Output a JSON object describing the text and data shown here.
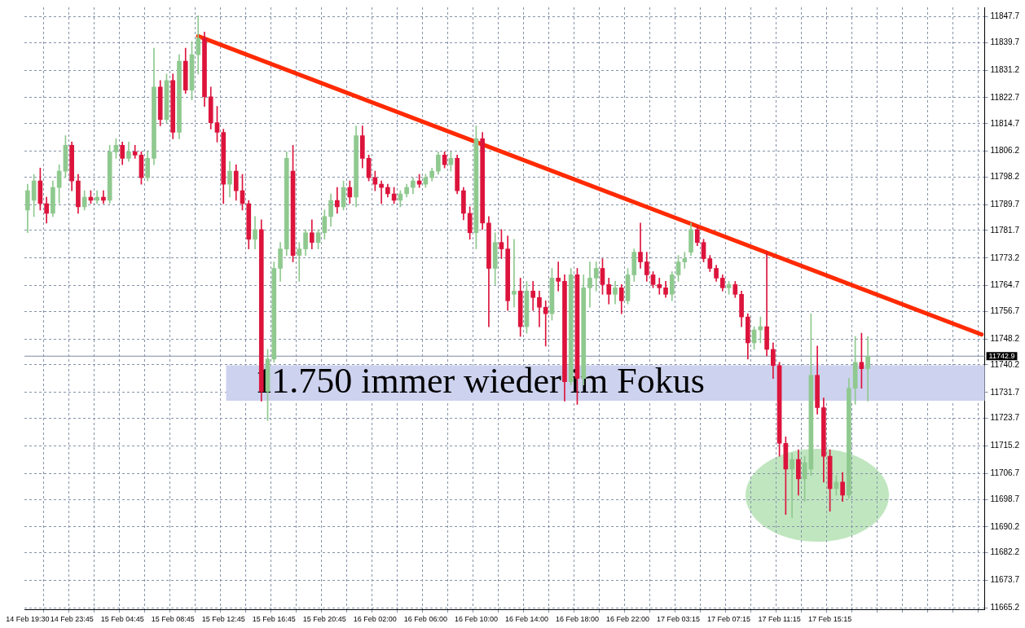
{
  "chart_data": {
    "type": "candlestick",
    "categories": [
      "14 Feb 19:30",
      null,
      null,
      null,
      null,
      null,
      null,
      "14 Feb 23:45",
      null,
      null,
      null,
      null,
      null,
      null,
      null,
      "15 Feb 04:45",
      null,
      null,
      null,
      null,
      null,
      null,
      null,
      "15 Feb 08:45",
      null,
      null,
      null,
      null,
      null,
      null,
      null,
      "15 Feb 12:45",
      null,
      null,
      null,
      null,
      null,
      null,
      null,
      "15 Feb 16:45",
      null,
      null,
      null,
      null,
      null,
      null,
      null,
      "15 Feb 20:45",
      null,
      null,
      null,
      null,
      null,
      null,
      null,
      "16 Feb 02:00",
      null,
      null,
      null,
      null,
      null,
      null,
      null,
      "16 Feb 06:00",
      null,
      null,
      null,
      null,
      null,
      null,
      null,
      "16 Feb 10:00",
      null,
      null,
      null,
      null,
      null,
      null,
      null,
      "16 Feb 14:00",
      null,
      null,
      null,
      null,
      null,
      null,
      null,
      "16 Feb 18:00",
      null,
      null,
      null,
      null,
      null,
      null,
      null,
      "16 Feb 22:00",
      null,
      null,
      null,
      null,
      null,
      null,
      null,
      "17 Feb 03:15",
      null,
      null,
      null,
      null,
      null,
      null,
      null,
      "17 Feb 07:15",
      null,
      null,
      null,
      null,
      null,
      null,
      null,
      "17 Feb 11:15",
      null,
      null,
      null,
      null,
      null,
      null,
      null,
      "17 Feb 15:15",
      null,
      null,
      null,
      null,
      null,
      null,
      null,
      null,
      null,
      null,
      null,
      null,
      null,
      null,
      null,
      null,
      null,
      null,
      null,
      null,
      null,
      null,
      null,
      null
    ],
    "ohlc": [
      [
        11788,
        11796,
        11781,
        11794
      ],
      [
        11791,
        11799,
        11786,
        11797
      ],
      [
        11797,
        11801,
        11788,
        11790
      ],
      [
        11790,
        11792,
        11784,
        11787
      ],
      [
        11787,
        11797,
        11786,
        11795
      ],
      [
        11795,
        11802,
        11790,
        11800
      ],
      [
        11800,
        11811,
        11798,
        11808
      ],
      [
        11808,
        11809,
        11794,
        11797
      ],
      [
        11797,
        11799,
        11787,
        11789
      ],
      [
        11789,
        11794,
        11788,
        11792
      ],
      [
        11792,
        11794,
        11790,
        11791
      ],
      [
        11791,
        11794,
        11790,
        11792
      ],
      [
        11792,
        11794,
        11790,
        11791
      ],
      [
        11791,
        11808,
        11790,
        11806
      ],
      [
        11806,
        11810,
        11804,
        11808
      ],
      [
        11808,
        11809,
        11802,
        11804
      ],
      [
        11804,
        11809,
        11803,
        11806
      ],
      [
        11806,
        11808,
        11804,
        11805
      ],
      [
        11805,
        11806,
        11796,
        11798
      ],
      [
        11798,
        11806,
        11797,
        11804
      ],
      [
        11804,
        11838,
        11802,
        11826
      ],
      [
        11826,
        11828,
        11814,
        11816
      ],
      [
        11816,
        11830,
        11815,
        11828
      ],
      [
        11828,
        11830,
        11810,
        11812
      ],
      [
        11812,
        11836,
        11810,
        11834
      ],
      [
        11834,
        11838,
        11824,
        11825
      ],
      [
        11825,
        11840,
        11822,
        11836
      ],
      [
        11836,
        11848,
        11830,
        11841
      ],
      [
        11841,
        11843,
        11820,
        11823
      ],
      [
        11823,
        11826,
        11813,
        11815
      ],
      [
        11815,
        11820,
        11809,
        11812
      ],
      [
        11812,
        11813,
        11790,
        11796
      ],
      [
        11796,
        11803,
        11792,
        11800
      ],
      [
        11800,
        11802,
        11791,
        11794
      ],
      [
        11794,
        11799,
        11788,
        11790
      ],
      [
        11790,
        11791,
        11776,
        11779
      ],
      [
        11779,
        11786,
        11776,
        11782
      ],
      [
        11782,
        11785,
        11729,
        11732
      ],
      [
        11732,
        11745,
        11723,
        11742
      ],
      [
        11742,
        11772,
        11741,
        11770
      ],
      [
        11770,
        11778,
        11766,
        11776
      ],
      [
        11776,
        11806,
        11774,
        11804
      ],
      [
        11800,
        11808,
        11772,
        11774
      ],
      [
        11774,
        11778,
        11766,
        11776
      ],
      [
        11776,
        11782,
        11774,
        11781
      ],
      [
        11781,
        11785,
        11776,
        11778
      ],
      [
        11778,
        11782,
        11776,
        11781
      ],
      [
        11781,
        11788,
        11779,
        11786
      ],
      [
        11786,
        11793,
        11783,
        11791
      ],
      [
        11791,
        11795,
        11787,
        11789
      ],
      [
        11789,
        11797,
        11788,
        11795
      ],
      [
        11795,
        11797,
        11790,
        11792
      ],
      [
        11792,
        11814,
        11789,
        11811
      ],
      [
        11811,
        11814,
        11801,
        11804
      ],
      [
        11804,
        11805,
        11797,
        11798
      ],
      [
        11798,
        11800,
        11794,
        11796
      ],
      [
        11796,
        11797,
        11790,
        11795
      ],
      [
        11795,
        11796,
        11792,
        11793
      ],
      [
        11793,
        11795,
        11790,
        11791
      ],
      [
        11791,
        11794,
        11789,
        11793
      ],
      [
        11793,
        11796,
        11792,
        11795
      ],
      [
        11795,
        11798,
        11793,
        11797
      ],
      [
        11797,
        11799,
        11795,
        11796
      ],
      [
        11796,
        11799,
        11795,
        11798
      ],
      [
        11798,
        11801,
        11797,
        11800
      ],
      [
        11800,
        11806,
        11799,
        11805
      ],
      [
        11805,
        11806,
        11801,
        11802
      ],
      [
        11802,
        11806,
        11800,
        11804
      ],
      [
        11804,
        11805,
        11793,
        11794
      ],
      [
        11794,
        11795,
        11785,
        11787
      ],
      [
        11787,
        11789,
        11779,
        11781
      ],
      [
        11781,
        11814,
        11776,
        11810
      ],
      [
        11810,
        11812,
        11782,
        11784
      ],
      [
        11784,
        11786,
        11752,
        11770
      ],
      [
        11770,
        11781,
        11765,
        11778
      ],
      [
        11778,
        11782,
        11773,
        11776
      ],
      [
        11776,
        11780,
        11757,
        11760
      ],
      [
        11762,
        11779,
        11758,
        11763
      ],
      [
        11763,
        11767,
        11749,
        11752
      ],
      [
        11752,
        11766,
        11750,
        11763
      ],
      [
        11763,
        11766,
        11757,
        11761
      ],
      [
        11761,
        11763,
        11752,
        11758
      ],
      [
        11758,
        11760,
        11746,
        11756
      ],
      [
        11756,
        11770,
        11754,
        11767
      ],
      [
        11767,
        11772,
        11763,
        11766
      ],
      [
        11766,
        11768,
        11729,
        11735
      ],
      [
        11735,
        11770,
        11734,
        11768
      ],
      [
        11768,
        11770,
        11728,
        11736
      ],
      [
        11736,
        11768,
        11734,
        11764
      ],
      [
        11764,
        11772,
        11758,
        11767
      ],
      [
        11767,
        11772,
        11763,
        11770
      ],
      [
        11770,
        11773,
        11762,
        11765
      ],
      [
        11765,
        11767,
        11759,
        11762
      ],
      [
        11762,
        11766,
        11759,
        11764
      ],
      [
        11764,
        11765,
        11756,
        11760
      ],
      [
        11760,
        11770,
        11759,
        11768
      ],
      [
        11768,
        11776,
        11766,
        11775
      ],
      [
        11775,
        11784,
        11770,
        11772
      ],
      [
        11772,
        11775,
        11766,
        11768
      ],
      [
        11768,
        11769,
        11764,
        11765
      ],
      [
        11765,
        11767,
        11762,
        11764
      ],
      [
        11764,
        11766,
        11761,
        11762
      ],
      [
        11762,
        11769,
        11760,
        11768
      ],
      [
        11768,
        11774,
        11766,
        11772
      ],
      [
        11772,
        11775,
        11770,
        11773
      ],
      [
        11775,
        11784,
        11774,
        11782
      ],
      [
        11782,
        11783,
        11777,
        11778
      ],
      [
        11778,
        11779,
        11772,
        11773
      ],
      [
        11773,
        11774,
        11769,
        11770
      ],
      [
        11770,
        11771,
        11766,
        11767
      ],
      [
        11767,
        11768,
        11763,
        11764
      ],
      [
        11764,
        11766,
        11762,
        11765
      ],
      [
        11765,
        11766,
        11761,
        11762
      ],
      [
        11762,
        11763,
        11752,
        11755
      ],
      [
        11755,
        11756,
        11742,
        11747
      ],
      [
        11747,
        11752,
        11745,
        11751
      ],
      [
        11751,
        11755,
        11747,
        11752
      ],
      [
        11752,
        11775,
        11743,
        11745
      ],
      [
        11745,
        11747,
        11736,
        11740
      ],
      [
        11740,
        11741,
        11712,
        11716
      ],
      [
        11716,
        11718,
        11694,
        11708
      ],
      [
        11708,
        11713,
        11693,
        11711
      ],
      [
        11711,
        11714,
        11700,
        11705
      ],
      [
        11705,
        11712,
        11698,
        11710
      ],
      [
        11708,
        11756,
        11706,
        11737
      ],
      [
        11737,
        11746,
        11725,
        11727
      ],
      [
        11727,
        11730,
        11704,
        11712
      ],
      [
        11712,
        11714,
        11695,
        11702
      ],
      [
        11702,
        11706,
        11700,
        11704
      ],
      [
        11704,
        11707,
        11698,
        11700
      ],
      [
        11700,
        11736,
        11699,
        11733
      ],
      [
        11733,
        11749,
        11728,
        11741
      ],
      [
        11741,
        11750,
        11733,
        11739
      ],
      [
        11739,
        11749,
        11729,
        11742.9
      ],
      null,
      null,
      null,
      null,
      null,
      null,
      null,
      null,
      null,
      null,
      null,
      null,
      null,
      null,
      null,
      null,
      null,
      null
    ],
    "colors": [
      "#8fc98f",
      "#8fc98f",
      "#dc143c",
      "#dc143c",
      "#8fc98f",
      "#8fc98f",
      "#8fc98f",
      "#dc143c",
      "#dc143c",
      "#8fc98f",
      "#dc143c",
      "#8fc98f",
      "#dc143c",
      "#8fc98f",
      "#8fc98f",
      "#dc143c",
      "#8fc98f",
      "#dc143c",
      "#dc143c",
      "#8fc98f",
      "#8fc98f",
      "#dc143c",
      "#8fc98f",
      "#dc143c",
      "#8fc98f",
      "#dc143c",
      "#8fc98f",
      "#8fc98f",
      "#dc143c",
      "#dc143c",
      "#dc143c",
      "#dc143c",
      "#8fc98f",
      "#dc143c",
      "#dc143c",
      "#dc143c",
      "#8fc98f",
      "#dc143c",
      "#8fc98f",
      "#8fc98f",
      "#8fc98f",
      "#8fc98f",
      "#dc143c",
      "#8fc98f",
      "#8fc98f",
      "#dc143c",
      "#8fc98f",
      "#8fc98f",
      "#8fc98f",
      "#dc143c",
      "#8fc98f",
      "#dc143c",
      "#8fc98f",
      "#dc143c",
      "#dc143c",
      "#dc143c",
      "#dc143c",
      "#dc143c",
      "#dc143c",
      "#8fc98f",
      "#8fc98f",
      "#8fc98f",
      "#dc143c",
      "#8fc98f",
      "#8fc98f",
      "#8fc98f",
      "#dc143c",
      "#8fc98f",
      "#dc143c",
      "#dc143c",
      "#dc143c",
      "#8fc98f",
      "#dc143c",
      "#dc143c",
      "#8fc98f",
      "#dc143c",
      "#dc143c",
      "#8fc98f",
      "#dc143c",
      "#8fc98f",
      "#dc143c",
      "#dc143c",
      "#dc143c",
      "#8fc98f",
      "#dc143c",
      "#dc143c",
      "#8fc98f",
      "#dc143c",
      "#8fc98f",
      "#8fc98f",
      "#8fc98f",
      "#dc143c",
      "#dc143c",
      "#8fc98f",
      "#dc143c",
      "#8fc98f",
      "#8fc98f",
      "#dc143c",
      "#dc143c",
      "#dc143c",
      "#dc143c",
      "#dc143c",
      "#8fc98f",
      "#8fc98f",
      "#8fc98f",
      "#8fc98f",
      "#dc143c",
      "#dc143c",
      "#dc143c",
      "#dc143c",
      "#dc143c",
      "#8fc98f",
      "#dc143c",
      "#dc143c",
      "#dc143c",
      "#8fc98f",
      "#8fc98f",
      "#dc143c",
      "#dc143c",
      "#dc143c",
      "#dc143c",
      "#8fc98f",
      "#dc143c",
      "#8fc98f",
      "#8fc98f",
      "#dc143c",
      "#dc143c",
      "#dc143c",
      "#8fc98f",
      "#dc143c",
      "#8fc98f",
      "#8fc98f",
      "#dc143c",
      "#8fc98f",
      null,
      null,
      null,
      null,
      null,
      null,
      null,
      null,
      null,
      null,
      null,
      null,
      null,
      null,
      null,
      null,
      null,
      null
    ],
    "series": [
      {
        "type": "line",
        "color": "#ff2a00",
        "values": [
          null,
          null,
          null,
          null,
          null,
          null,
          null,
          null,
          null,
          null,
          null,
          null,
          null,
          null,
          null,
          null,
          null,
          null,
          null,
          null,
          null,
          null,
          null,
          null,
          null,
          null,
          null,
          11841.7,
          null,
          null,
          null,
          null,
          null,
          null,
          null,
          null,
          null,
          null,
          null,
          null,
          null,
          null,
          null,
          null,
          null,
          null,
          null,
          null,
          null,
          null,
          null,
          null,
          null,
          null,
          null,
          null,
          null,
          null,
          null,
          null,
          null,
          null,
          null,
          null,
          null,
          null,
          null,
          null,
          null,
          null,
          null,
          null,
          null,
          null,
          null,
          null,
          null,
          null,
          null,
          null,
          null,
          null,
          null,
          null,
          null,
          null,
          null,
          null,
          null,
          null,
          null,
          null,
          null,
          null,
          null,
          null,
          null,
          null,
          null,
          null,
          null,
          null,
          null,
          null,
          null,
          null,
          null,
          null,
          null,
          null,
          null,
          null,
          null,
          null,
          null,
          null,
          null,
          null,
          null,
          null,
          null,
          null,
          null,
          null,
          null,
          null,
          null,
          null,
          null,
          null,
          null,
          null,
          null,
          null,
          null,
          null,
          null,
          null,
          null,
          null,
          null,
          null,
          null,
          null,
          null,
          null,
          null,
          null,
          null,
          null,
          null,
          11749.6
        ]
      }
    ],
    "ylim": [
      11664.7,
      11850.6
    ],
    "yticks": [
      11665.2,
      11673.7,
      11682.2,
      11690.2,
      11698.7,
      11706.7,
      11715.2,
      11723.7,
      11731.7,
      11740.2,
      11748.2,
      11756.7,
      11764.7,
      11773.2,
      11781.7,
      11789.7,
      11798.2,
      11806.2,
      11814.7,
      11822.7,
      11831.2,
      11839.7,
      11847.7
    ],
    "grid": true,
    "ref_lines": [
      {
        "axis": "y",
        "value": 11742.9,
        "label": "11742.9",
        "color": "#7d8aa6"
      }
    ],
    "bands": [
      {
        "axis": "y",
        "from": 11729.1,
        "to": 11740.1,
        "label": "11.750 immer wieder im Fokus",
        "color": "#cdd2ee"
      }
    ]
  }
}
